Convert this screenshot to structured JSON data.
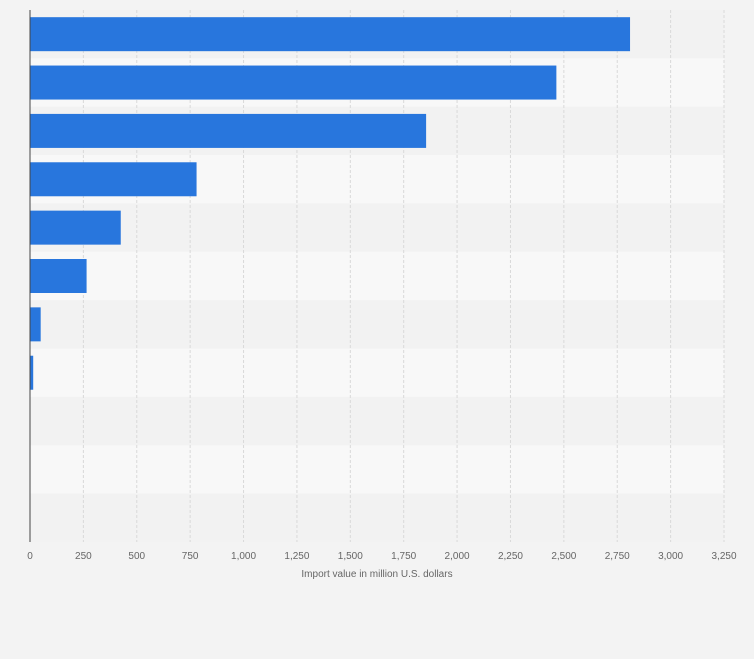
{
  "chart_data": {
    "type": "bar",
    "orientation": "horizontal",
    "categories": [
      "",
      "",
      "",
      "",
      "",
      "",
      "",
      "",
      "",
      "",
      ""
    ],
    "values": [
      2810,
      2465,
      1855,
      780,
      425,
      265,
      50,
      15,
      0,
      0,
      0
    ],
    "xlabel": "Import value in million U.S. dollars",
    "ylabel": "",
    "xlim": [
      0,
      3250
    ],
    "xticks": [
      0,
      250,
      500,
      750,
      1000,
      1250,
      1500,
      1750,
      2000,
      2250,
      2500,
      2750,
      3000,
      3250
    ],
    "xtick_labels": [
      "0",
      "250",
      "500",
      "750",
      "1,000",
      "1,250",
      "1,500",
      "1,750",
      "2,000",
      "2,250",
      "2,500",
      "2,750",
      "3,000",
      "3,250"
    ],
    "grid": true,
    "legend": "none"
  },
  "colors": {
    "bar": "#2876dd",
    "background": "#f3f3f3",
    "band_light": "#f8f8f8",
    "band_dark": "#f2f2f2",
    "grid": "#d9d9d9",
    "axis": "#444444",
    "text": "#666666"
  }
}
